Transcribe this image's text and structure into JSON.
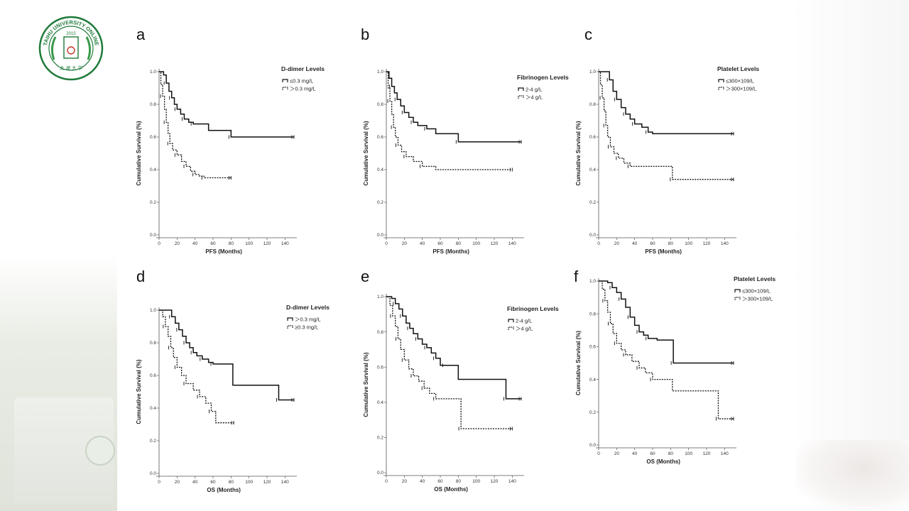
{
  "logo": {
    "text": "TAIHU UNIVERSITY ONLINE",
    "year": "2015",
    "bottom_text": "太 湖 大 学",
    "color": "#1f7a3a"
  },
  "colors": {
    "line": "#111111",
    "text": "#222222"
  },
  "chart_data": [
    {
      "id": "a",
      "type": "line",
      "panel_label": "a",
      "xlabel": "PFS (Months)",
      "ylabel": "Cumulative Survival (%)",
      "xlim": [
        0,
        150
      ],
      "ylim": [
        0,
        1
      ],
      "xticks": [
        0,
        20,
        40,
        60,
        80,
        100,
        120,
        140
      ],
      "xtick_labels": [
        "0",
        "20",
        "40",
        "60",
        "80",
        "100",
        "120",
        "140"
      ],
      "yticks": [
        0,
        0.2,
        0.4,
        0.6,
        0.8,
        1.0
      ],
      "ytick_labels": [
        "0.0",
        "0.2",
        "0.4",
        "0.6",
        "0.8",
        "1.0"
      ],
      "legend_title": "D-dimer Levels",
      "series": [
        {
          "name": "≤0.3 mg/L",
          "style": "solid",
          "x": [
            0,
            5,
            8,
            11,
            14,
            17,
            20,
            24,
            28,
            33,
            38,
            55,
            80,
            150
          ],
          "y": [
            1.0,
            0.98,
            0.93,
            0.88,
            0.84,
            0.8,
            0.77,
            0.74,
            0.71,
            0.69,
            0.68,
            0.64,
            0.6,
            0.6
          ]
        },
        {
          "name": "＞0.3 mg/L",
          "style": "dashed",
          "x": [
            0,
            2,
            4,
            6,
            8,
            10,
            12,
            15,
            20,
            25,
            30,
            35,
            40,
            45,
            50,
            80
          ],
          "y": [
            1.0,
            0.92,
            0.85,
            0.77,
            0.69,
            0.62,
            0.56,
            0.52,
            0.49,
            0.45,
            0.42,
            0.39,
            0.37,
            0.36,
            0.35,
            0.35
          ]
        }
      ]
    },
    {
      "id": "b",
      "type": "line",
      "panel_label": "b",
      "xlabel": "PFS (Months)",
      "ylabel": "Cumulative Survival (%)",
      "xlim": [
        0,
        150
      ],
      "ylim": [
        0,
        1
      ],
      "xticks": [
        0,
        20,
        40,
        60,
        80,
        100,
        120,
        140
      ],
      "xtick_labels": [
        "0",
        "20",
        "40",
        "60",
        "80",
        "100",
        "120",
        "140"
      ],
      "yticks": [
        0,
        0.2,
        0.4,
        0.6,
        0.8,
        1.0
      ],
      "ytick_labels": [
        "0.0",
        "0.2",
        "0.4",
        "0.6",
        "0.8",
        "1.0"
      ],
      "legend_title": "Fibrinogen Levels",
      "series": [
        {
          "name": "2-4 g/L",
          "style": "solid",
          "x": [
            0,
            3,
            6,
            9,
            12,
            16,
            20,
            25,
            30,
            35,
            45,
            55,
            80,
            150
          ],
          "y": [
            1.0,
            0.96,
            0.91,
            0.87,
            0.83,
            0.79,
            0.75,
            0.72,
            0.69,
            0.67,
            0.65,
            0.62,
            0.57,
            0.57
          ]
        },
        {
          "name": "＞4 g/L",
          "style": "dashed",
          "x": [
            0,
            2,
            4,
            6,
            8,
            10,
            13,
            17,
            22,
            30,
            40,
            55,
            140
          ],
          "y": [
            1.0,
            0.9,
            0.82,
            0.74,
            0.66,
            0.6,
            0.55,
            0.51,
            0.48,
            0.45,
            0.42,
            0.4,
            0.4
          ]
        }
      ]
    },
    {
      "id": "c",
      "type": "line",
      "panel_label": "c",
      "xlabel": "PFS (Months)",
      "ylabel": "Cumulative Survival (%)",
      "xlim": [
        0,
        150
      ],
      "ylim": [
        0,
        1
      ],
      "xticks": [
        0,
        20,
        40,
        60,
        80,
        100,
        120,
        140
      ],
      "xtick_labels": [
        "0",
        "20",
        "40",
        "60",
        "80",
        "100",
        "120",
        "140"
      ],
      "yticks": [
        0,
        0.2,
        0.4,
        0.6,
        0.8,
        1.0
      ],
      "ytick_labels": [
        "0.0",
        "0.2",
        "0.4",
        "0.6",
        "0.8",
        "1.0"
      ],
      "legend_title": "Platelet Levels",
      "series": [
        {
          "name": "≤300×109/L",
          "style": "solid",
          "x": [
            0,
            8,
            12,
            16,
            20,
            25,
            30,
            35,
            40,
            48,
            55,
            60,
            150
          ],
          "y": [
            1.0,
            1.0,
            0.95,
            0.88,
            0.83,
            0.78,
            0.74,
            0.71,
            0.68,
            0.66,
            0.63,
            0.62,
            0.62
          ]
        },
        {
          "name": "＞300×109/L",
          "style": "dashed",
          "x": [
            0,
            2,
            4,
            6,
            8,
            10,
            13,
            17,
            22,
            28,
            35,
            45,
            82,
            150
          ],
          "y": [
            1.0,
            0.92,
            0.84,
            0.76,
            0.67,
            0.6,
            0.54,
            0.5,
            0.47,
            0.44,
            0.42,
            0.42,
            0.34,
            0.34
          ]
        }
      ]
    },
    {
      "id": "d",
      "type": "line",
      "panel_label": "d",
      "xlabel": "OS (Months)",
      "ylabel": "Cumulative Survival (%)",
      "xlim": [
        0,
        150
      ],
      "ylim": [
        0,
        1
      ],
      "xticks": [
        0,
        20,
        40,
        60,
        80,
        100,
        120,
        140
      ],
      "xtick_labels": [
        "0",
        "20",
        "40",
        "60",
        "80",
        "100",
        "120",
        "140"
      ],
      "yticks": [
        0,
        0.2,
        0.4,
        0.6,
        0.8,
        1.0
      ],
      "ytick_labels": [
        "0.0",
        "0.2",
        "0.4",
        "0.6",
        "0.8",
        "1.0"
      ],
      "legend_title": "D-dimer Levels",
      "series": [
        {
          "name": "＞0.3 mg/L",
          "style": "solid",
          "x": [
            0,
            10,
            14,
            18,
            22,
            26,
            30,
            34,
            38,
            42,
            48,
            55,
            60,
            82,
            133,
            150
          ],
          "y": [
            1.0,
            1.0,
            0.96,
            0.92,
            0.88,
            0.84,
            0.8,
            0.77,
            0.74,
            0.72,
            0.7,
            0.68,
            0.67,
            0.54,
            0.45,
            0.45
          ]
        },
        {
          "name": "≥0.3 mg/L",
          "style": "dashed",
          "x": [
            0,
            4,
            7,
            10,
            13,
            16,
            20,
            25,
            30,
            38,
            45,
            52,
            58,
            63,
            83
          ],
          "y": [
            1.0,
            0.96,
            0.9,
            0.84,
            0.77,
            0.71,
            0.65,
            0.6,
            0.55,
            0.51,
            0.47,
            0.43,
            0.38,
            0.31,
            0.31
          ]
        }
      ]
    },
    {
      "id": "e",
      "type": "line",
      "panel_label": "e",
      "xlabel": "OS (Months)",
      "ylabel": "Cumulative Survival (%)",
      "xlim": [
        0,
        150
      ],
      "ylim": [
        0,
        1
      ],
      "xticks": [
        0,
        20,
        40,
        60,
        80,
        100,
        120,
        140
      ],
      "xtick_labels": [
        "0",
        "20",
        "40",
        "60",
        "80",
        "100",
        "120",
        "140"
      ],
      "yticks": [
        0,
        0.2,
        0.4,
        0.6,
        0.8,
        1.0
      ],
      "ytick_labels": [
        "0.0",
        "0.2",
        "0.4",
        "0.6",
        "0.8",
        "1.0"
      ],
      "legend_title": "Fibrinogen Levels",
      "series": [
        {
          "name": "2-4 g/L",
          "style": "solid",
          "x": [
            0,
            6,
            10,
            14,
            18,
            22,
            26,
            30,
            35,
            40,
            45,
            50,
            55,
            60,
            65,
            80,
            133,
            150
          ],
          "y": [
            1.0,
            0.99,
            0.96,
            0.93,
            0.89,
            0.85,
            0.82,
            0.79,
            0.76,
            0.73,
            0.71,
            0.68,
            0.65,
            0.61,
            0.61,
            0.53,
            0.42,
            0.42
          ]
        },
        {
          "name": "＞4 g/L",
          "style": "dashed",
          "x": [
            0,
            4,
            7,
            10,
            13,
            16,
            20,
            25,
            30,
            36,
            42,
            48,
            55,
            60,
            83,
            140
          ],
          "y": [
            1.0,
            0.95,
            0.89,
            0.83,
            0.76,
            0.7,
            0.64,
            0.59,
            0.55,
            0.52,
            0.48,
            0.45,
            0.42,
            0.42,
            0.25,
            0.25
          ]
        }
      ]
    },
    {
      "id": "f",
      "type": "line",
      "panel_label": "f",
      "xlabel": "OS (Months)",
      "ylabel": "Cumulative Survival (%)",
      "xlim": [
        0,
        150
      ],
      "ylim": [
        0,
        1
      ],
      "xticks": [
        0,
        20,
        40,
        60,
        80,
        100,
        120,
        140
      ],
      "xtick_labels": [
        "0",
        "20",
        "40",
        "60",
        "80",
        "100",
        "120",
        "140"
      ],
      "yticks": [
        0,
        0.2,
        0.4,
        0.6,
        0.8,
        1.0
      ],
      "ytick_labels": [
        "0.0",
        "0.2",
        "0.4",
        "0.6",
        "0.8",
        "1.0"
      ],
      "legend_title": "Platelet Levels",
      "series": [
        {
          "name": "≤300×109/L",
          "style": "solid",
          "x": [
            0,
            10,
            15,
            20,
            25,
            30,
            35,
            40,
            45,
            50,
            55,
            65,
            83,
            150
          ],
          "y": [
            1.0,
            0.99,
            0.96,
            0.93,
            0.89,
            0.84,
            0.78,
            0.73,
            0.69,
            0.67,
            0.65,
            0.64,
            0.5,
            0.5
          ]
        },
        {
          "name": "＞300×109/L",
          "style": "dashed",
          "x": [
            0,
            4,
            7,
            10,
            13,
            16,
            20,
            25,
            30,
            37,
            45,
            52,
            60,
            82,
            133,
            150
          ],
          "y": [
            1.0,
            0.95,
            0.88,
            0.81,
            0.74,
            0.68,
            0.62,
            0.58,
            0.55,
            0.51,
            0.47,
            0.44,
            0.4,
            0.33,
            0.16,
            0.16
          ]
        }
      ]
    }
  ]
}
